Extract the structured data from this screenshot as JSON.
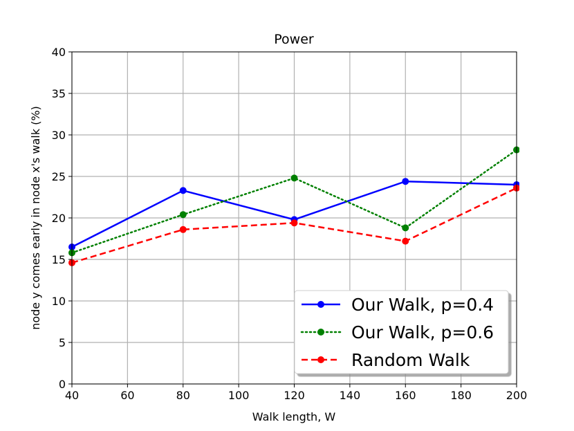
{
  "chart_data": {
    "type": "line",
    "title": "Power",
    "xlabel": "Walk length, W",
    "ylabel": "node y comes early in node x's walk (%)",
    "x": [
      40,
      80,
      120,
      160,
      200
    ],
    "xlim": [
      40,
      200
    ],
    "ylim": [
      0,
      40
    ],
    "xticks": [
      40,
      60,
      80,
      100,
      120,
      140,
      160,
      180,
      200
    ],
    "yticks": [
      0,
      5,
      10,
      15,
      20,
      25,
      30,
      35,
      40
    ],
    "grid": true,
    "legend_position": "lower-right",
    "series": [
      {
        "name": "Our Walk, p=0.4",
        "values": [
          16.5,
          23.3,
          19.8,
          24.4,
          24.0
        ],
        "color": "#0000ff",
        "linestyle": "solid"
      },
      {
        "name": "Our Walk, p=0.6",
        "values": [
          15.8,
          20.4,
          24.8,
          18.8,
          28.2
        ],
        "color": "#008000",
        "linestyle": "dotted"
      },
      {
        "name": "Random Walk",
        "values": [
          14.6,
          18.6,
          19.4,
          17.2,
          23.6
        ],
        "color": "#ff0000",
        "linestyle": "dashed"
      }
    ]
  }
}
